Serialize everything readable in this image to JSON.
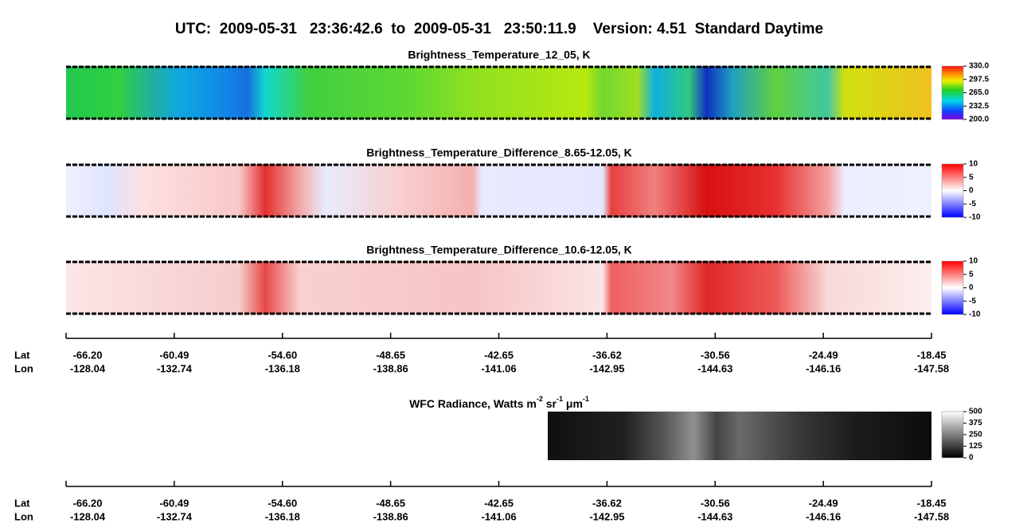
{
  "header": {
    "title": "UTC:  2009-05-31   23:36:42.6  to  2009-05-31   23:50:11.9    Version: 4.51  Standard Daytime"
  },
  "panels": [
    {
      "title": "Brightness_Temperature_12_05, K",
      "colorbar": [
        "330.0",
        "297.5",
        "265.0",
        "232.5",
        "200.0"
      ]
    },
    {
      "title": "Brightness_Temperature_Difference_8.65-12.05, K",
      "colorbar": [
        "10",
        "5",
        "0",
        "-5",
        "-10"
      ]
    },
    {
      "title": "Brightness_Temperature_Difference_10.6-12.05, K",
      "colorbar": [
        "10",
        "5",
        "0",
        "-5",
        "-10"
      ]
    }
  ],
  "wfc": {
    "title_parts": [
      "WFC Radiance, Watts m",
      "-2",
      " sr",
      "-1",
      " μm",
      "-1"
    ],
    "colorbar": [
      "500",
      "375",
      "250",
      "125",
      "0"
    ]
  },
  "axes": [
    {
      "lat_label": "Lat",
      "lon_label": "Lon",
      "lat": [
        "-66.20",
        "-60.49",
        "-54.60",
        "-48.65",
        "-42.65",
        "-36.62",
        "-30.56",
        "-24.49",
        "-18.45"
      ],
      "lon": [
        "-128.04",
        "-132.74",
        "-136.18",
        "-138.86",
        "-141.06",
        "-142.95",
        "-144.63",
        "-146.16",
        "-147.58"
      ]
    },
    {
      "lat_label": "Lat",
      "lon_label": "Lon",
      "lat": [
        "-66.20",
        "-60.49",
        "-54.60",
        "-48.65",
        "-42.65",
        "-36.62",
        "-30.56",
        "-24.49",
        "-18.45"
      ],
      "lon": [
        "-128.04",
        "-132.74",
        "-136.18",
        "-138.86",
        "-141.06",
        "-142.95",
        "-144.63",
        "-146.16",
        "-147.58"
      ]
    }
  ]
}
